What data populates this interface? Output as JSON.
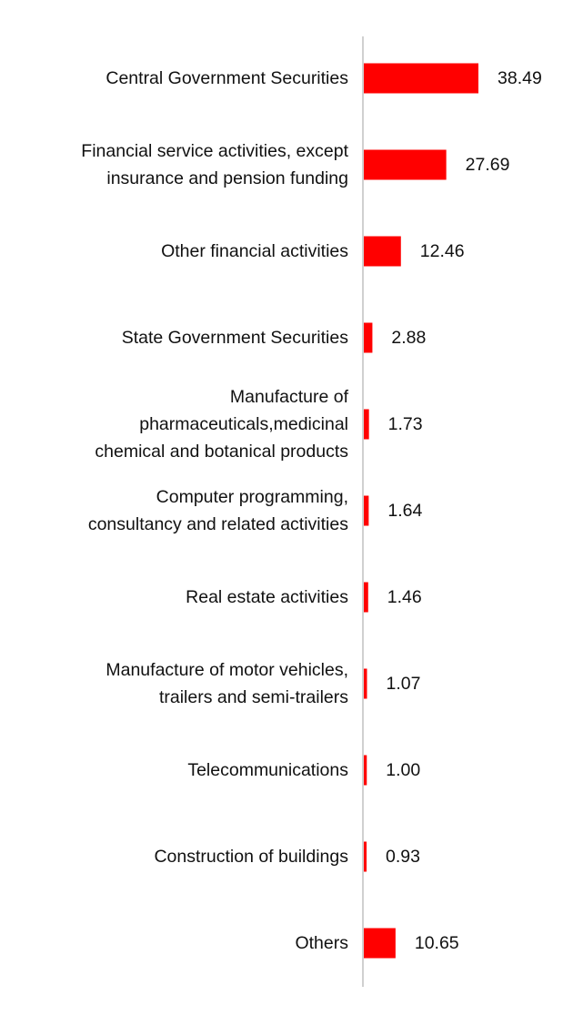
{
  "chart_data": {
    "type": "bar",
    "orientation": "horizontal",
    "title": "",
    "xlabel": "",
    "ylabel": "",
    "grid": false,
    "legend": "none",
    "bar_color": "#ff0000",
    "axis_color": "#d0d0d0",
    "xlim": [
      0,
      40
    ],
    "categories": [
      [
        "Central Government Securities"
      ],
      [
        "Financial service activities, except",
        "insurance and pension funding"
      ],
      [
        "Other financial activities"
      ],
      [
        "State Government Securities"
      ],
      [
        "Manufacture of",
        "pharmaceuticals,medicinal",
        "chemical and botanical products"
      ],
      [
        "Computer programming,",
        "consultancy and related activities"
      ],
      [
        "Real estate activities"
      ],
      [
        "Manufacture of motor vehicles,",
        "trailers and semi-trailers"
      ],
      [
        "Telecommunications"
      ],
      [
        "Construction of buildings"
      ],
      [
        "Others"
      ]
    ],
    "values": [
      38.49,
      27.69,
      12.46,
      2.88,
      1.73,
      1.64,
      1.46,
      1.07,
      1.0,
      0.93,
      10.65
    ],
    "value_labels": [
      "38.49",
      "27.69",
      "12.46",
      "2.88",
      "1.73",
      "1.64",
      "1.46",
      "1.07",
      "1.00",
      "0.93",
      "10.65"
    ]
  }
}
